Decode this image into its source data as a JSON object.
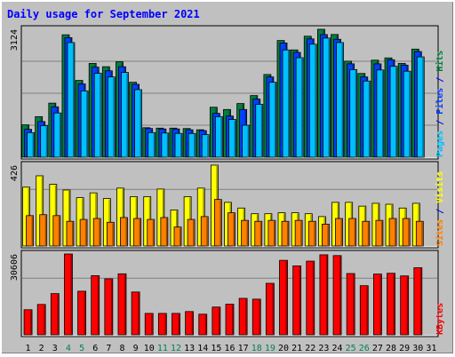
{
  "chart_data": {
    "type": "bar",
    "title": "Daily usage for September 2021",
    "categories": [
      "1",
      "2",
      "3",
      "4",
      "5",
      "6",
      "7",
      "8",
      "9",
      "10",
      "11",
      "12",
      "13",
      "14",
      "15",
      "16",
      "17",
      "18",
      "19",
      "20",
      "21",
      "22",
      "23",
      "24",
      "25",
      "26",
      "27",
      "28",
      "29",
      "30",
      "31"
    ],
    "weekend_days": [
      "4",
      "5",
      "11",
      "12",
      "18",
      "19",
      "25",
      "26"
    ],
    "panels": [
      {
        "name": "hits-files-pages",
        "max_label": "3124",
        "ylim": [
          0,
          3124
        ],
        "series": [
          {
            "name": "Hits",
            "color": "#008040",
            "values": [
              790,
              990,
              1320,
              2990,
              1875,
              2290,
              2210,
              2330,
              1830,
              720,
              710,
              710,
              700,
              670,
              1220,
              1165,
              1310,
              1505,
              2020,
              2850,
              2620,
              2955,
              3124,
              2997,
              2345,
              2045,
              2370,
              2425,
              2290,
              2640,
              0
            ]
          },
          {
            "name": "Files",
            "color": "#0040ff",
            "values": [
              680,
              870,
              1230,
              2920,
              1790,
              2200,
              2110,
              2210,
              1780,
              700,
              690,
              690,
              670,
              650,
              1070,
              1005,
              1165,
              1420,
              1960,
              2790,
              2560,
              2890,
              2995,
              2880,
              2280,
              1960,
              2280,
              2380,
              2250,
              2580,
              0
            ]
          },
          {
            "name": "Pages",
            "color": "#00c0ff",
            "values": [
              600,
              770,
              1080,
              2800,
              1620,
              2050,
              1960,
              2070,
              1650,
              600,
              590,
              580,
              580,
              550,
              990,
              920,
              780,
              1290,
              1830,
              2620,
              2430,
              2760,
              2910,
              2800,
              2140,
              1860,
              2130,
              2220,
              2100,
              2450,
              0
            ]
          }
        ],
        "right_label_parts": [
          {
            "text": "Pages",
            "color": "#00c0ff"
          },
          {
            "text": " / ",
            "color": "#0000ff"
          },
          {
            "text": "Files",
            "color": "#0040ff"
          },
          {
            "text": " / ",
            "color": "#0000ff"
          },
          {
            "text": "Hits",
            "color": "#008040"
          }
        ]
      },
      {
        "name": "visits-sites",
        "max_label": "426",
        "ylim": [
          0,
          426
        ],
        "series": [
          {
            "name": "Visits",
            "color": "#ffff00",
            "values": [
              310,
              370,
              325,
              295,
              255,
              280,
              250,
              305,
              260,
              260,
              300,
              190,
              260,
              305,
              426,
              230,
              200,
              170,
              170,
              175,
              175,
              170,
              155,
              230,
              230,
              210,
              225,
              220,
              200,
              225,
              0
            ]
          },
          {
            "name": "Sites",
            "color": "#ff8000",
            "values": [
              160,
              165,
              160,
              130,
              140,
              145,
              125,
              150,
              145,
              140,
              150,
              100,
              140,
              155,
              245,
              175,
              135,
              130,
              135,
              130,
              135,
              130,
              115,
              145,
              145,
              130,
              135,
              145,
              145,
              130,
              0
            ]
          }
        ],
        "right_label_parts": [
          {
            "text": "Sites",
            "color": "#ff8000"
          },
          {
            "text": " / ",
            "color": "#0000ff"
          },
          {
            "text": "Visits",
            "color": "#ffff00"
          }
        ]
      },
      {
        "name": "kbytes",
        "max_label": "30606",
        "ylim": [
          0,
          30606
        ],
        "series": [
          {
            "name": "KBytes",
            "color": "#ff0000",
            "values": [
              9500,
              11500,
              15600,
              30606,
              16500,
              22400,
              21200,
              23100,
              16200,
              8100,
              8100,
              8100,
              8800,
              7800,
              10500,
              11600,
              13800,
              13500,
              19500,
              28200,
              26100,
              27900,
              30300,
              30000,
              23200,
              18600,
              23000,
              23300,
              22300,
              25400,
              0
            ]
          }
        ],
        "right_label_parts": [
          {
            "text": "KBytes",
            "color": "#ff0000"
          }
        ]
      }
    ]
  },
  "colors": {
    "background": "#c0c0c0",
    "title": "#0000ff",
    "weekday_label": "#000000",
    "weekend_label": "#00805c",
    "gridline": "#808080"
  }
}
